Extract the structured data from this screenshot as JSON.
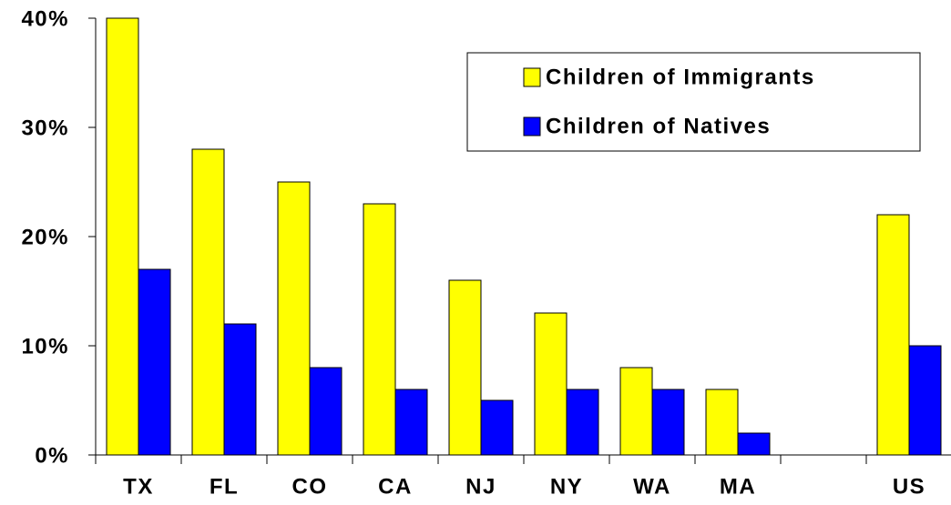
{
  "chart_data": {
    "type": "bar",
    "categories": [
      "TX",
      "FL",
      "CO",
      "CA",
      "NJ",
      "NY",
      "WA",
      "MA",
      null,
      "US"
    ],
    "series": [
      {
        "name": "Children of Immigrants",
        "color": "#ffff00",
        "values": [
          40,
          28,
          25,
          23,
          16,
          13,
          8,
          6,
          null,
          22
        ]
      },
      {
        "name": "Children of Natives",
        "color": "#0000ff",
        "values": [
          17,
          12,
          8,
          6,
          5,
          6,
          6,
          2,
          null,
          10
        ]
      }
    ],
    "ylim": [
      0,
      40
    ],
    "yticks": [
      {
        "value": 0,
        "label": "0%"
      },
      {
        "value": 10,
        "label": "10%"
      },
      {
        "value": 20,
        "label": "20%"
      },
      {
        "value": 30,
        "label": "30%"
      },
      {
        "value": 40,
        "label": "40%"
      }
    ],
    "grid": false,
    "legend": "top-right"
  }
}
